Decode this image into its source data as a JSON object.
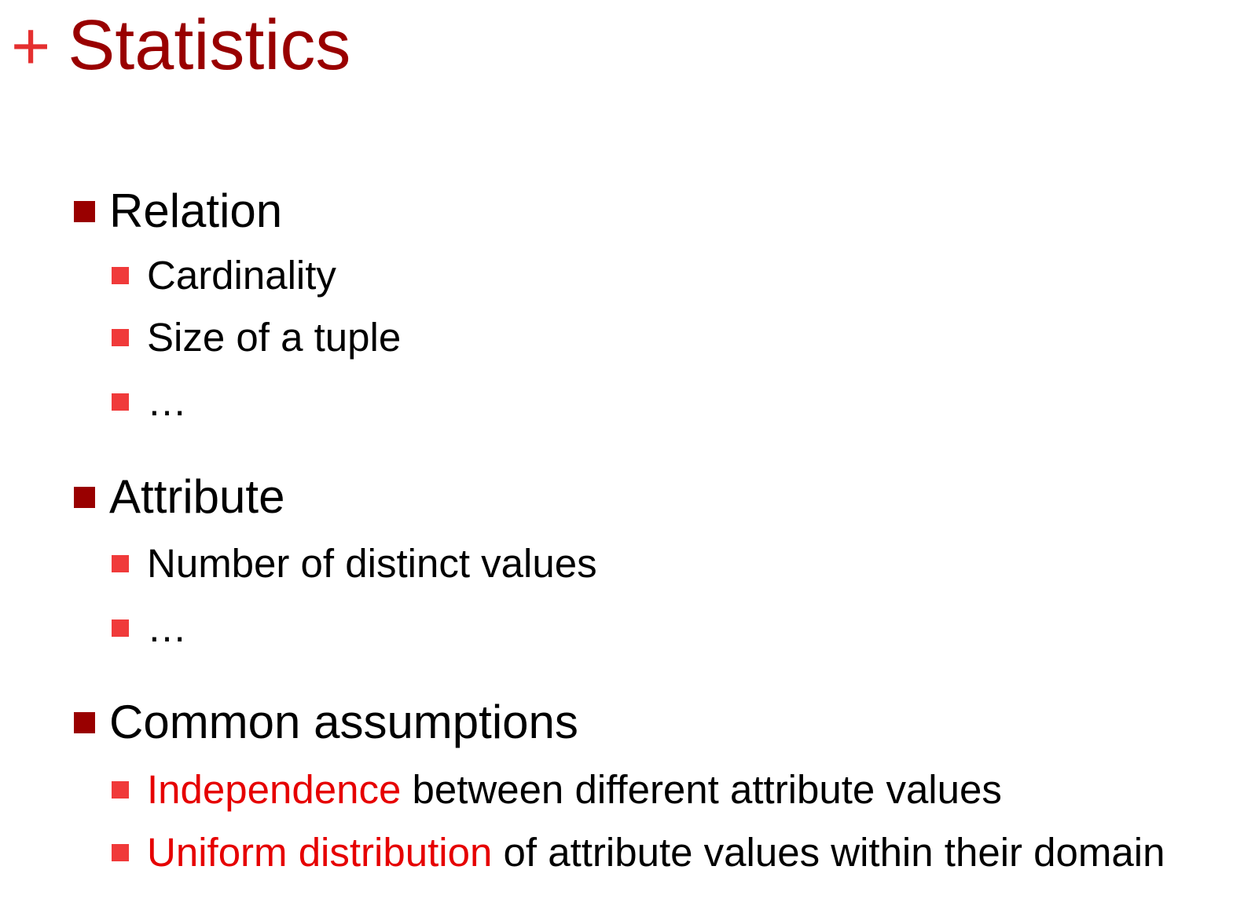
{
  "slide": {
    "title_plus": "+",
    "title": "Statistics",
    "sections": [
      {
        "heading": "Relation",
        "items": [
          "Cardinality",
          "Size of a tuple",
          "…"
        ]
      },
      {
        "heading": "Attribute",
        "items": [
          "Number of distinct values",
          "…"
        ]
      },
      {
        "heading": "Common assumptions",
        "items": [
          {
            "highlight": "Independence",
            "rest": " between different attribute values"
          },
          {
            "highlight": "Uniform distribution",
            "rest": " of attribute values within their domain"
          }
        ]
      }
    ],
    "colors": {
      "title": "#990000",
      "plus": "#e52f2f",
      "level1_bullet": "#990000",
      "level2_bullet": "#f03a3a",
      "highlight": "#e60000"
    }
  }
}
